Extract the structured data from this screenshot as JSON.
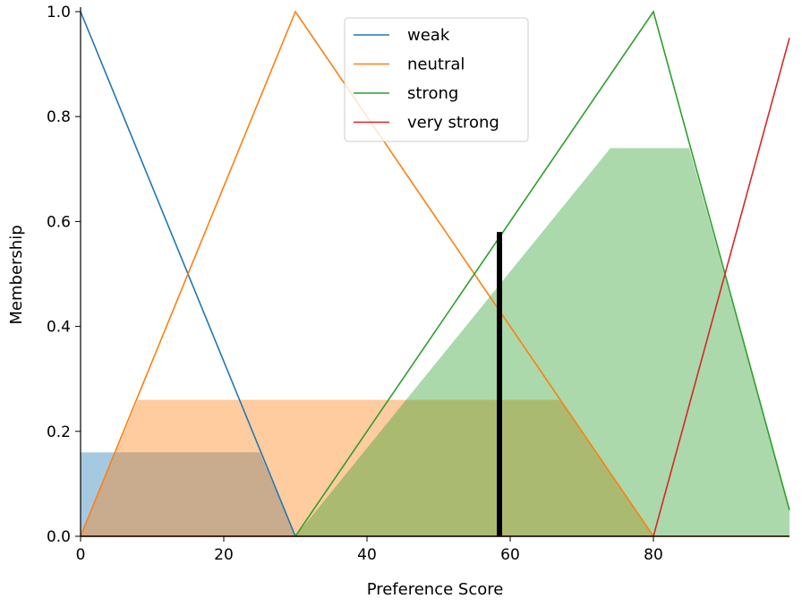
{
  "chart_data": {
    "type": "line",
    "xlabel": "Preference Score",
    "ylabel": "Membership",
    "xlim": [
      0,
      99
    ],
    "ylim": [
      0,
      1.0
    ],
    "xticks": [
      "0",
      "20",
      "40",
      "60",
      "80"
    ],
    "yticks": [
      "0.0",
      "0.2",
      "0.4",
      "0.6",
      "0.8",
      "1.0"
    ],
    "legend_position": "top-center",
    "series": [
      {
        "name": "weak",
        "color": "#1f77b4",
        "x": [
          0,
          30,
          99
        ],
        "y": [
          1.0,
          0.0,
          0.0
        ]
      },
      {
        "name": "neutral",
        "color": "#ff7f0e",
        "x": [
          0,
          30,
          80,
          99
        ],
        "y": [
          0.0,
          1.0,
          0.0,
          0.0
        ]
      },
      {
        "name": "strong",
        "color": "#2ca02c",
        "x": [
          0,
          30,
          80,
          99
        ],
        "y": [
          0.0,
          0.0,
          1.0,
          0.05
        ]
      },
      {
        "name": "very strong",
        "color": "#d62728",
        "x": [
          0,
          80,
          99
        ],
        "y": [
          0.0,
          0.0,
          0.95
        ]
      }
    ],
    "activation_fills": [
      {
        "series": "weak",
        "color": "#1f77b4",
        "x": [
          0,
          25,
          30,
          99
        ],
        "y": [
          0.16,
          0.16,
          0.0,
          0.0
        ]
      },
      {
        "series": "neutral",
        "color": "#ff7f0e",
        "x": [
          0,
          8,
          67,
          80,
          99
        ],
        "y": [
          0.0,
          0.26,
          0.26,
          0.0,
          0.0
        ]
      },
      {
        "series": "strong",
        "color": "#2ca02c",
        "x": [
          0,
          30,
          74,
          85,
          99
        ],
        "y": [
          0.0,
          0.0,
          0.74,
          0.74,
          0.05
        ]
      }
    ],
    "defuzzified_marker": {
      "x": 58.5,
      "y": 0.58,
      "color": "#000000"
    }
  }
}
